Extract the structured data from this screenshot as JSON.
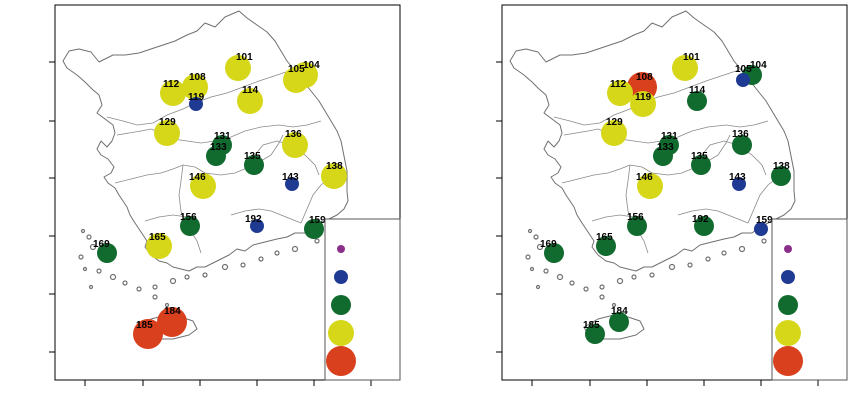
{
  "palette": {
    "purple": "#8b2f8b",
    "blue": "#1f3a93",
    "green": "#116b2e",
    "yellow": "#d7d71a",
    "red": "#d8401e"
  },
  "legend_levels": [
    "purple",
    "blue",
    "green",
    "yellow",
    "red"
  ],
  "maps": [
    {
      "name": "left-map",
      "stations": [
        {
          "id": "101",
          "level": "yellow"
        },
        {
          "id": "104",
          "level": "yellow"
        },
        {
          "id": "105",
          "level": "yellow"
        },
        {
          "id": "108",
          "level": "yellow"
        },
        {
          "id": "112",
          "level": "yellow"
        },
        {
          "id": "114",
          "level": "yellow"
        },
        {
          "id": "119",
          "level": "blue"
        },
        {
          "id": "129",
          "level": "yellow"
        },
        {
          "id": "131",
          "level": "green"
        },
        {
          "id": "133",
          "level": "green"
        },
        {
          "id": "135",
          "level": "green"
        },
        {
          "id": "136",
          "level": "yellow"
        },
        {
          "id": "138",
          "level": "yellow"
        },
        {
          "id": "143",
          "level": "blue"
        },
        {
          "id": "146",
          "level": "yellow"
        },
        {
          "id": "156",
          "level": "green"
        },
        {
          "id": "159",
          "level": "green"
        },
        {
          "id": "165",
          "level": "yellow"
        },
        {
          "id": "169",
          "level": "green"
        },
        {
          "id": "184",
          "level": "red"
        },
        {
          "id": "185",
          "level": "red"
        },
        {
          "id": "192",
          "level": "blue"
        }
      ]
    },
    {
      "name": "right-map",
      "stations": [
        {
          "id": "101",
          "level": "yellow"
        },
        {
          "id": "104",
          "level": "green"
        },
        {
          "id": "105",
          "level": "blue"
        },
        {
          "id": "108",
          "level": "red"
        },
        {
          "id": "112",
          "level": "yellow"
        },
        {
          "id": "114",
          "level": "green"
        },
        {
          "id": "119",
          "level": "yellow"
        },
        {
          "id": "129",
          "level": "yellow"
        },
        {
          "id": "131",
          "level": "green"
        },
        {
          "id": "133",
          "level": "green"
        },
        {
          "id": "135",
          "level": "green"
        },
        {
          "id": "136",
          "level": "green"
        },
        {
          "id": "138",
          "level": "green"
        },
        {
          "id": "143",
          "level": "blue"
        },
        {
          "id": "146",
          "level": "yellow"
        },
        {
          "id": "156",
          "level": "green"
        },
        {
          "id": "159",
          "level": "blue"
        },
        {
          "id": "165",
          "level": "green"
        },
        {
          "id": "169",
          "level": "green"
        },
        {
          "id": "184",
          "level": "green"
        },
        {
          "id": "185",
          "level": "green"
        },
        {
          "id": "192",
          "level": "green"
        }
      ]
    }
  ]
}
